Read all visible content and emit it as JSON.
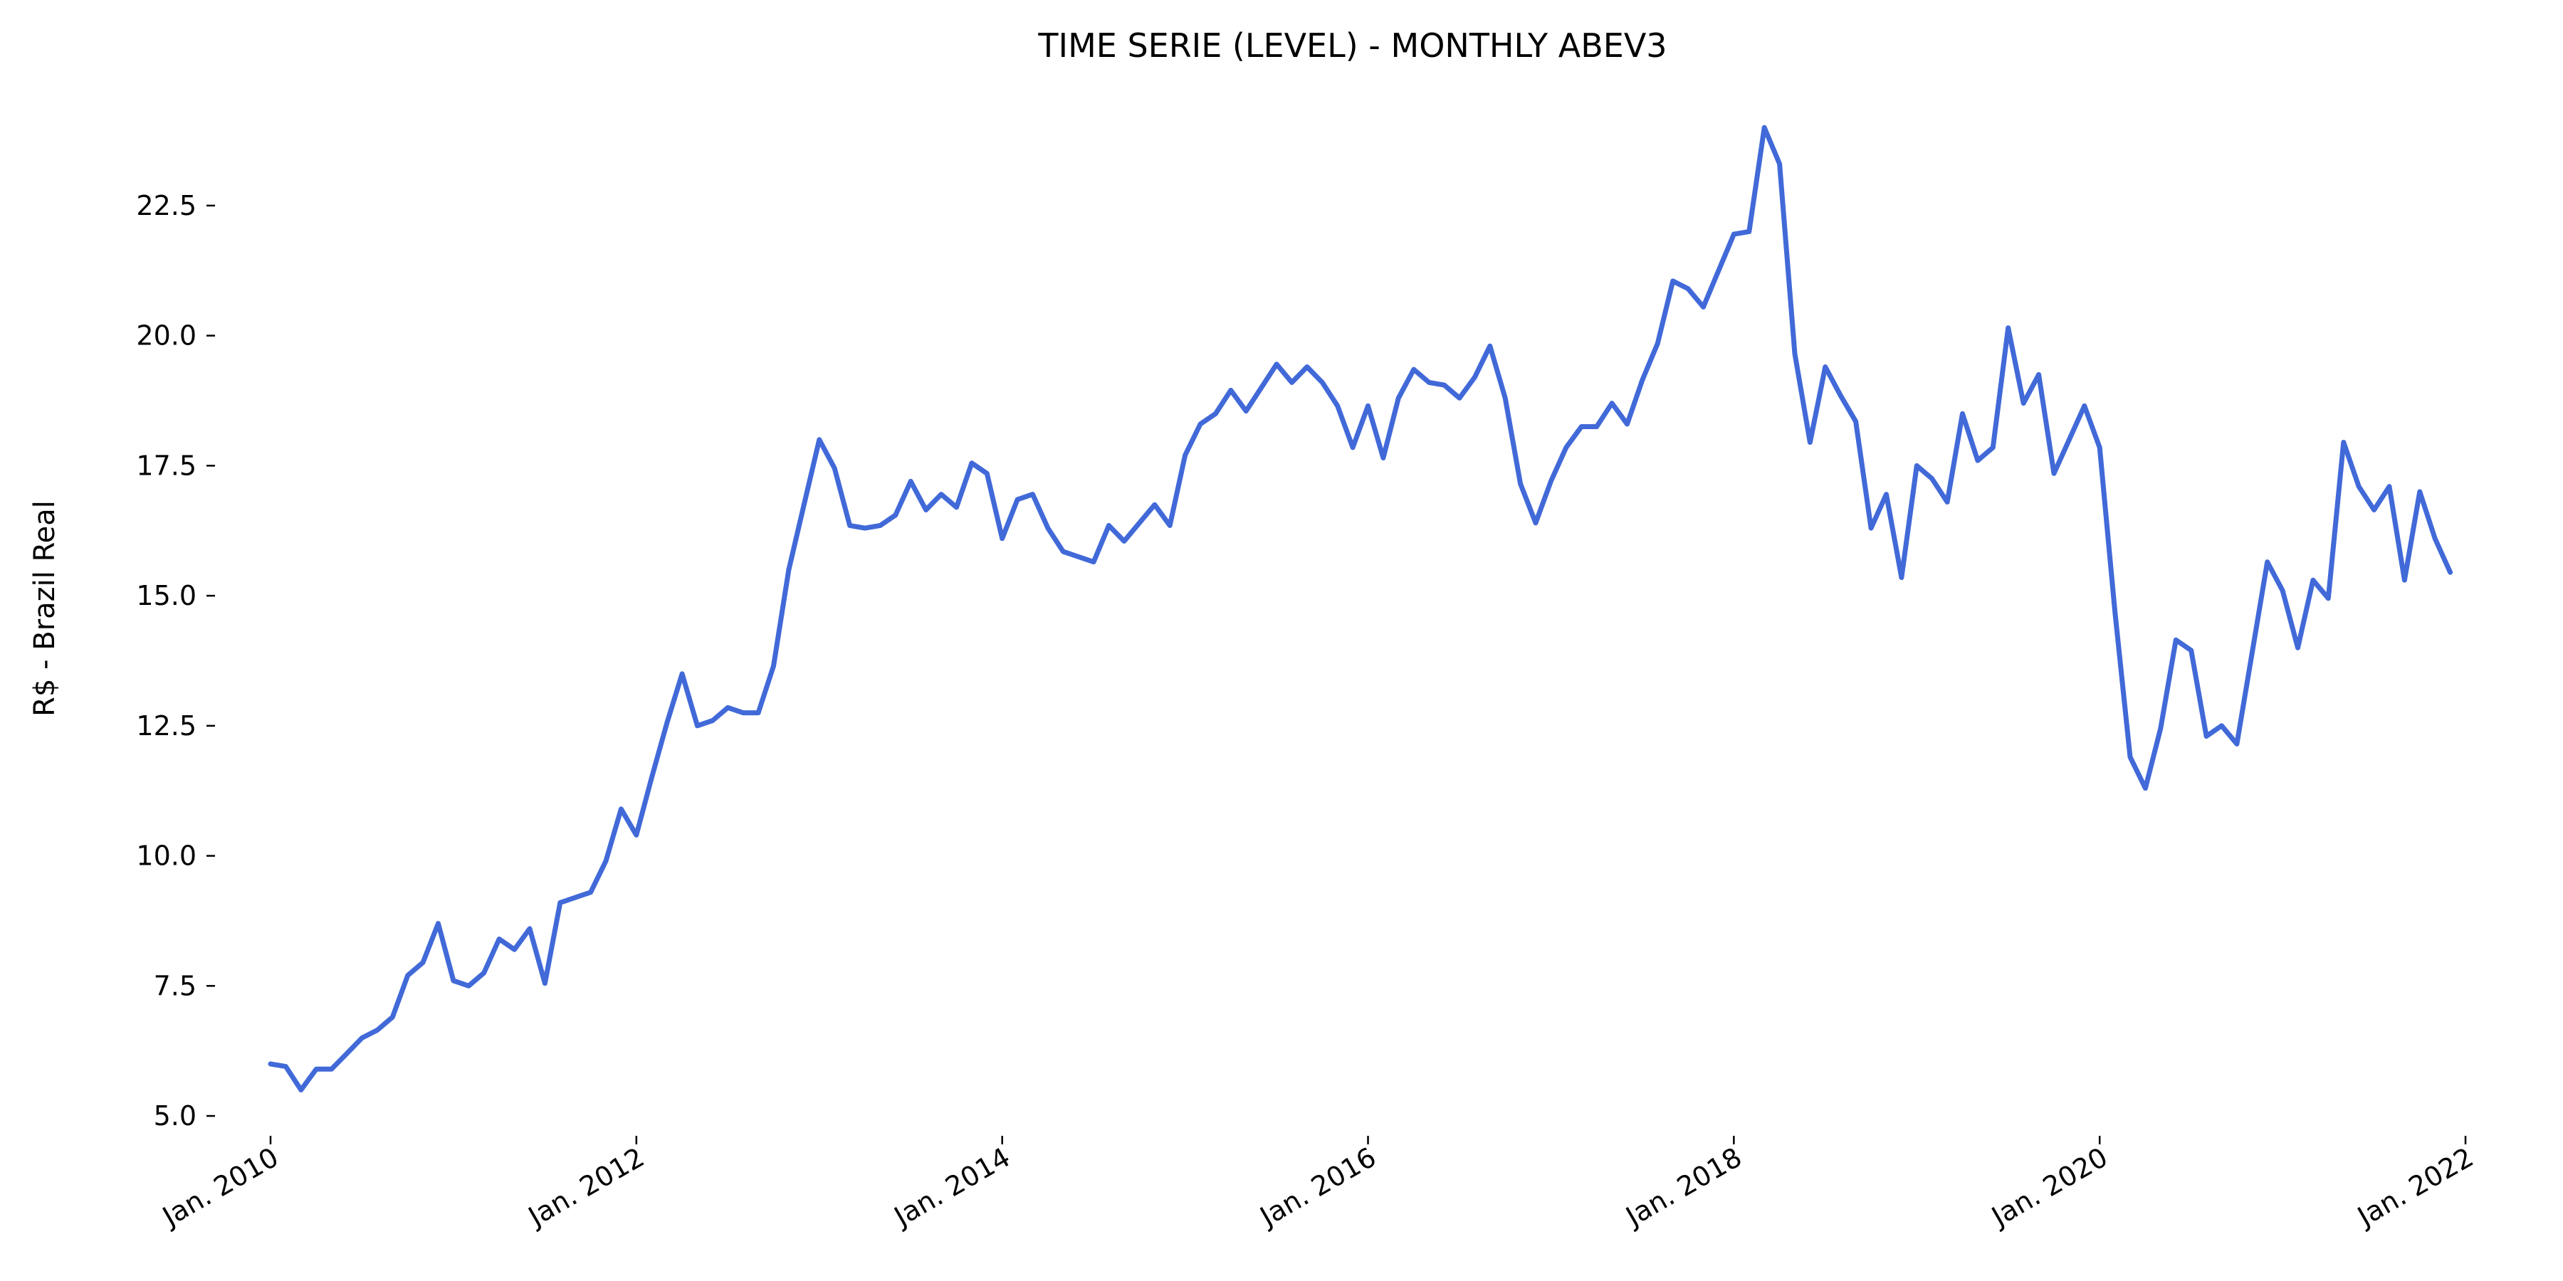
{
  "chart_data": {
    "type": "line",
    "title": "TIME SERIE (LEVEL) - MONTHLY ABEV3",
    "xlabel": "",
    "ylabel": "R$ - Brazil Real",
    "x_start": "2010-01",
    "x_frequency": "monthly",
    "yticks": [
      "5.0",
      "7.5",
      "10.0",
      "12.5",
      "15.0",
      "17.5",
      "20.0",
      "22.5"
    ],
    "xticks": [
      "Jan. 2010",
      "Jan. 2012",
      "Jan. 2014",
      "Jan. 2016",
      "Jan. 2018",
      "Jan. 2020",
      "Jan. 2022"
    ],
    "ylim": [
      4.7,
      24.4
    ],
    "grid": false,
    "series": [
      {
        "color": "#4169d8",
        "values": [
          6.0,
          5.95,
          5.5,
          5.9,
          5.9,
          6.2,
          6.5,
          6.65,
          6.9,
          7.7,
          7.95,
          8.7,
          7.6,
          7.5,
          7.75,
          8.4,
          8.2,
          8.6,
          7.55,
          9.1,
          9.2,
          9.3,
          9.9,
          10.9,
          10.4,
          11.5,
          12.55,
          13.5,
          12.5,
          12.6,
          12.85,
          12.75,
          12.75,
          13.65,
          15.5,
          16.75,
          18.0,
          17.45,
          16.35,
          16.3,
          16.35,
          16.55,
          17.2,
          16.65,
          16.95,
          16.7,
          17.55,
          17.35,
          16.1,
          16.85,
          16.95,
          16.3,
          15.85,
          15.75,
          15.65,
          16.35,
          16.05,
          16.4,
          16.75,
          16.35,
          17.7,
          18.3,
          18.5,
          18.95,
          18.55,
          19.0,
          19.45,
          19.1,
          19.4,
          19.1,
          18.65,
          17.85,
          18.65,
          17.65,
          18.8,
          19.35,
          19.1,
          19.05,
          18.8,
          19.2,
          19.8,
          18.8,
          17.15,
          16.4,
          17.2,
          17.85,
          18.25,
          18.25,
          18.7,
          18.3,
          19.15,
          19.85,
          21.05,
          20.9,
          20.55,
          21.25,
          21.95,
          22.0,
          24.0,
          23.3,
          19.65,
          17.95,
          19.4,
          18.85,
          18.35,
          16.3,
          16.95,
          15.35,
          17.5,
          17.25,
          16.8,
          18.5,
          17.6,
          17.85,
          20.15,
          18.7,
          19.25,
          17.35,
          18.0,
          18.65,
          17.85,
          14.7,
          11.9,
          11.3,
          12.45,
          14.15,
          13.95,
          12.3,
          12.5,
          12.15,
          13.9,
          15.65,
          15.1,
          14.0,
          15.3,
          14.95,
          17.95,
          17.1,
          16.65,
          17.1,
          15.3,
          17.0,
          16.1,
          15.45
        ]
      }
    ]
  }
}
